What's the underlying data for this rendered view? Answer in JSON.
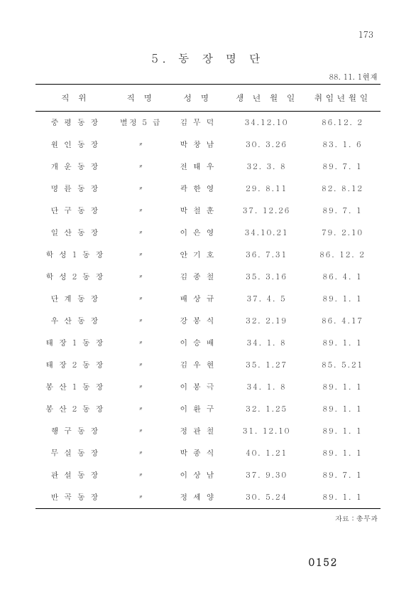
{
  "page_number_top": "173",
  "title": "5.  동   장   명   단",
  "as_of": "88. 11. 1현재",
  "columns": [
    "직    위",
    "직  명",
    "성   명",
    "생 년 월 일",
    "취임년월일"
  ],
  "first_rank": "별정 5 급",
  "ditto": "〃",
  "rows": [
    {
      "pos": "중 평 동 장",
      "name": "김 무 덕",
      "birth": "34.12.10",
      "appt": "86.12. 2"
    },
    {
      "pos": "원 인 동 장",
      "name": "박 창 남",
      "birth": "30. 3.26",
      "appt": "83. 1. 6"
    },
    {
      "pos": "개 운 동 장",
      "name": "전 태 우",
      "birth": "32. 3. 8",
      "appt": "89. 7. 1"
    },
    {
      "pos": "명 륜 동 장",
      "name": "곽 한 영",
      "birth": "29. 8.11",
      "appt": "82. 8.12"
    },
    {
      "pos": "단 구 동 장",
      "name": "박 철 훈",
      "birth": "37. 12.26",
      "appt": "89. 7. 1"
    },
    {
      "pos": "일 산 동 장",
      "name": "이 은 영",
      "birth": "34.10.21",
      "appt": "79. 2.10"
    },
    {
      "pos": "학 성 1 동 장",
      "name": "안 기 호",
      "birth": "36. 7.31",
      "appt": "86. 12. 2"
    },
    {
      "pos": "학 성 2 동 장",
      "name": "김 종 철",
      "birth": "35. 3.16",
      "appt": "86. 4. 1"
    },
    {
      "pos": "단 계 동 장",
      "name": "배 상 규",
      "birth": "37. 4. 5",
      "appt": "89. 1. 1"
    },
    {
      "pos": "우 산 동 장",
      "name": "강 봉 식",
      "birth": "32. 2.19",
      "appt": "86. 4.17"
    },
    {
      "pos": "태 장 1 동 장",
      "name": "이 승 배",
      "birth": "34. 1. 8",
      "appt": "89. 1. 1"
    },
    {
      "pos": "태 장 2 동 장",
      "name": "김 우 현",
      "birth": "35. 1.27",
      "appt": "85. 5.21"
    },
    {
      "pos": "봉 산 1 동 장",
      "name": "이 봉 극",
      "birth": "34. 1. 8",
      "appt": "89. 1. 1"
    },
    {
      "pos": "봉 산 2 동 장",
      "name": "이 환 구",
      "birth": "32. 1.25",
      "appt": "89. 1. 1"
    },
    {
      "pos": "행 구 동 장",
      "name": "정 관 철",
      "birth": "31. 12.10",
      "appt": "89. 1. 1"
    },
    {
      "pos": "무 실 동 장",
      "name": "박 종 식",
      "birth": "40. 1.21",
      "appt": "89. 1. 1"
    },
    {
      "pos": "관 설 동 장",
      "name": "이 상 남",
      "birth": "37. 9.30",
      "appt": "89. 7. 1"
    },
    {
      "pos": "반 곡 동 장",
      "name": "정 세 양",
      "birth": "30. 5.24",
      "appt": "89. 1. 1"
    }
  ],
  "source": "자료 : 총무과",
  "foot_number": "0152"
}
